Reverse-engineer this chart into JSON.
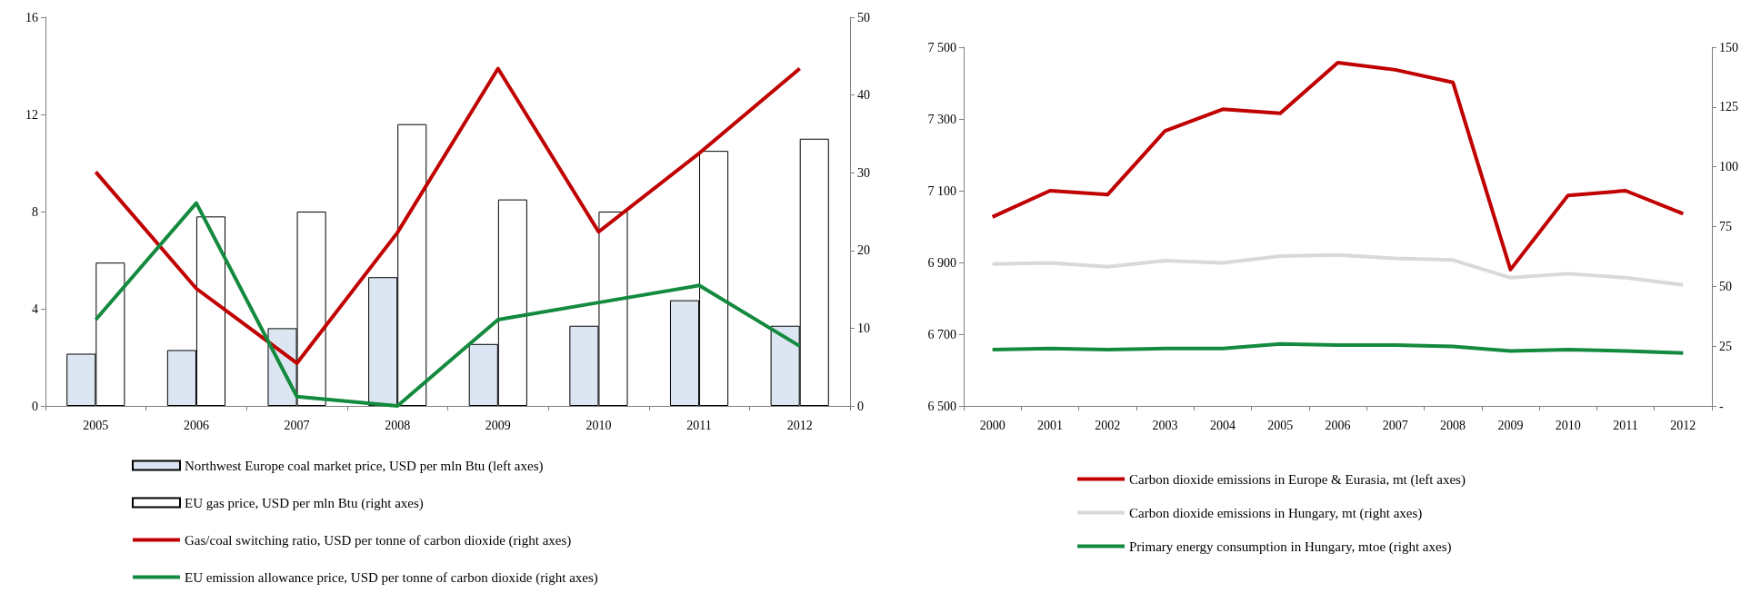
{
  "chart_data": [
    {
      "type": "bar",
      "categories": [
        "2005",
        "2006",
        "2007",
        "2008",
        "2009",
        "2010",
        "2011",
        "2012"
      ],
      "series": [
        {
          "name": "Northwest Europe coal market price, USD per mln Btu (left axes)",
          "color": "#dce6f2",
          "values": [
            2.15,
            2.3,
            3.2,
            5.3,
            2.55,
            3.3,
            4.35,
            3.3
          ]
        },
        {
          "name": "EU gas price, USD per mln Btu (right axes)",
          "color": "#ffffff",
          "values": [
            5.9,
            7.8,
            8.0,
            11.6,
            8.5,
            8.0,
            10.5,
            11.0
          ]
        },
        {
          "name": "Gas/coal switching ratio, USD per tonne of carbon dioxide (right axes)",
          "type": "line",
          "axis": "y2",
          "color": "#c00000",
          "values": [
            30.1,
            15.1,
            5.5,
            22.3,
            43.4,
            22.4,
            32.5,
            43.4
          ]
        },
        {
          "name": "EU emission allowance price, USD per tonne of carbon dioxide (right axes)",
          "type": "line",
          "axis": "y2",
          "color": "#138a3e",
          "values": [
            11.1,
            26.1,
            1.2,
            0,
            11.1,
            13.3,
            15.5,
            7.7
          ]
        }
      ],
      "ylim": [
        0,
        16
      ],
      "yticks": [
        0,
        4,
        8,
        12,
        16
      ],
      "y2lim": [
        0,
        50
      ],
      "y2ticks": [
        0,
        10,
        20,
        30,
        40,
        50
      ],
      "grid": false,
      "legend": "bottom",
      "marker": "none"
    },
    {
      "type": "line",
      "categories": [
        "2000",
        "2001",
        "2002",
        "2003",
        "2004",
        "2005",
        "2006",
        "2007",
        "2008",
        "2009",
        "2010",
        "2011",
        "2012"
      ],
      "series": [
        {
          "name": "Carbon dioxide emissions in Europe & Eurasia, mt (left axes)",
          "color": "#c00000",
          "values": [
            7027,
            7100,
            7089,
            7267,
            7327,
            7316,
            7457,
            7437,
            7402,
            6880,
            7087,
            7100,
            7036
          ]
        },
        {
          "name": "Carbon dioxide emissions in Hungary, mt (right axes)",
          "axis": "y2",
          "color": "#d9d9d9",
          "values": [
            59.3,
            59.8,
            58.2,
            60.8,
            59.8,
            62.7,
            63.1,
            61.7,
            61,
            53.6,
            55.3,
            53.6,
            50.6
          ]
        },
        {
          "name": "Primary energy consumption in Hungary, mtoe (right axes)",
          "axis": "y2",
          "color": "#138a3e",
          "values": [
            23.5,
            24,
            23.5,
            24,
            24,
            25.9,
            25.4,
            25.4,
            24.9,
            23,
            23.5,
            23,
            22.1
          ]
        }
      ],
      "ylim": [
        6500,
        7500
      ],
      "yticks": [
        {
          "value": 6500,
          "label": "6 500"
        },
        {
          "value": 6700,
          "label": "6 700"
        },
        {
          "value": 6900,
          "label": "6 900"
        },
        {
          "value": 7100,
          "label": "7 100"
        },
        {
          "value": 7300,
          "label": "7 300"
        },
        {
          "value": 7500,
          "label": "7 500"
        }
      ],
      "y2lim": [
        0,
        150
      ],
      "y2ticks": [
        {
          "value": 0,
          "label": "-"
        },
        25,
        50,
        75,
        100,
        125,
        150
      ],
      "grid": false,
      "legend": "bottom",
      "marker": "none"
    }
  ]
}
